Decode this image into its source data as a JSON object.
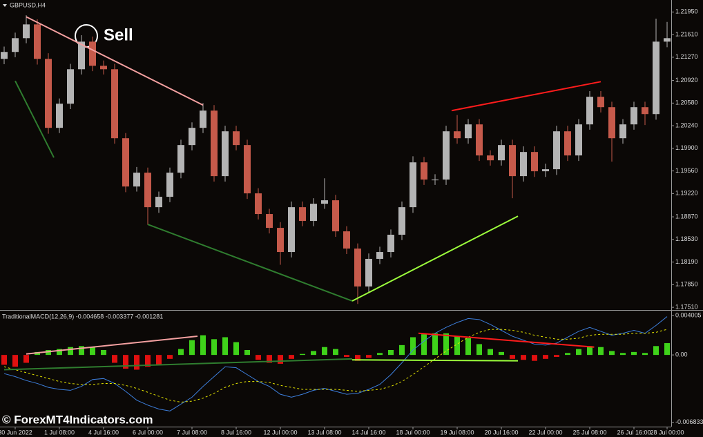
{
  "chart_data": [
    {
      "type": "candlestick",
      "title": "GBPUSD,H4",
      "annotation": "Sell",
      "categories": [
        null,
        "30 Jun 2022",
        null,
        null,
        null,
        "1 Jul 08:00",
        null,
        null,
        null,
        "4 Jul 16:00",
        null,
        null,
        null,
        "6 Jul 00:00",
        null,
        null,
        null,
        "7 Jul 08:00",
        null,
        null,
        null,
        "8 Jul 16:00",
        null,
        null,
        null,
        "12 Jul 00:00",
        null,
        null,
        null,
        "13 Jul 08:00",
        null,
        null,
        null,
        "14 Jul 16:00",
        null,
        null,
        null,
        "18 Jul 00:00",
        null,
        null,
        null,
        "19 Jul 08:00",
        null,
        null,
        null,
        "20 Jul 16:00",
        null,
        null,
        null,
        "22 Jul 00:00",
        null,
        null,
        null,
        "25 Jul 08:00",
        null,
        null,
        null,
        "26 Jul 16:00",
        null,
        null,
        "28 Jul 00:00"
      ],
      "open": [
        1.21245,
        1.21349,
        1.21556,
        1.21763,
        1.21245,
        1.20208,
        1.20571,
        1.21089,
        1.21504,
        1.21141,
        1.21089,
        1.20052,
        1.19326,
        1.19534,
        1.19015,
        1.19171,
        1.19534,
        1.19949,
        1.20208,
        1.20467,
        1.19482,
        1.20156,
        1.19949,
        1.19223,
        1.18912,
        1.18704,
        1.18341,
        1.19015,
        1.18808,
        1.19067,
        1.19119,
        1.18652,
        1.18393,
        1.17823,
        1.18238,
        1.18341,
        1.18601,
        1.19015,
        1.19689,
        1.1943,
        1.1943,
        1.20156,
        1.20052,
        1.2026,
        1.19793,
        1.1972,
        1.19949,
        1.19482,
        1.19845,
        1.19555,
        1.19586,
        1.20156,
        1.19793,
        1.2026,
        1.20675,
        1.20519,
        1.20052,
        1.2026,
        1.20519,
        1.20415,
        1.21504
      ],
      "high": [
        1.2143,
        1.2164,
        1.219,
        1.2184,
        1.2133,
        1.2065,
        1.2117,
        1.216,
        1.2158,
        1.2122,
        1.2117,
        1.2013,
        1.1962,
        1.1961,
        1.1925,
        1.1961,
        1.2003,
        1.2029,
        1.2058,
        1.2055,
        1.2024,
        1.2024,
        1.2003,
        1.193,
        1.1899,
        1.1879,
        1.191,
        1.191,
        1.1915,
        1.1945,
        1.192,
        1.1873,
        1.1847,
        1.1832,
        1.1842,
        1.1868,
        1.191,
        1.1978,
        1.1977,
        1.1951,
        1.2024,
        1.204,
        1.2034,
        1.2034,
        1.1987,
        1.2003,
        1.2003,
        1.1993,
        1.1993,
        1.1967,
        1.2024,
        1.2024,
        1.2034,
        1.2076,
        1.2076,
        1.206,
        1.2034,
        1.206,
        1.206,
        1.2185,
        1.218
      ],
      "low": [
        1.21165,
        1.2127,
        1.2148,
        1.2116,
        1.2012,
        1.2013,
        1.2049,
        1.2101,
        1.2106,
        1.2101,
        1.1997,
        1.1924,
        1.1925,
        1.1875,
        1.1893,
        1.1909,
        1.1945,
        1.1987,
        1.2013,
        1.194,
        1.194,
        1.1987,
        1.1914,
        1.1883,
        1.1862,
        1.1815,
        1.1826,
        1.1873,
        1.1873,
        1.1899,
        1.1857,
        1.1831,
        1.1756,
        1.1774,
        1.1816,
        1.1826,
        1.1852,
        1.1893,
        1.1935,
        1.1935,
        1.1935,
        1.1997,
        1.1997,
        1.1971,
        1.1964,
        1.1964,
        1.1915,
        1.194,
        1.1947,
        1.1947,
        1.195,
        1.1971,
        1.1971,
        1.2018,
        1.2044,
        1.197,
        1.1997,
        1.2018,
        1.2025,
        1.2033,
        1.2142
      ],
      "close": [
        1.21349,
        1.21556,
        1.21763,
        1.21245,
        1.20208,
        1.20571,
        1.21089,
        1.21504,
        1.21141,
        1.21089,
        1.20052,
        1.19326,
        1.19534,
        1.19015,
        1.19171,
        1.19534,
        1.19949,
        1.20208,
        1.20467,
        1.19482,
        1.20156,
        1.19949,
        1.19223,
        1.18912,
        1.18704,
        1.18341,
        1.19015,
        1.18808,
        1.19067,
        1.19119,
        1.18652,
        1.18393,
        1.17823,
        1.18238,
        1.18341,
        1.18601,
        1.19015,
        1.19689,
        1.1943,
        1.1943,
        1.20156,
        1.20052,
        1.2026,
        1.19793,
        1.1972,
        1.19949,
        1.19482,
        1.19845,
        1.19555,
        1.19586,
        1.20156,
        1.19793,
        1.2026,
        1.20675,
        1.20519,
        1.20052,
        1.2026,
        1.20519,
        1.20415,
        1.21504,
        1.21556
      ],
      "up_color": "#b4b4b4",
      "down_color": "#c65a4b",
      "ylim": [
        1.1748,
        1.2213
      ],
      "yticks": [
        {
          "value": 1.2195,
          "label": "1.21950"
        },
        {
          "value": 1.2161,
          "label": "1.21610"
        },
        {
          "value": 1.2127,
          "label": "1.21270"
        },
        {
          "value": 1.2092,
          "label": "1.20920"
        },
        {
          "value": 1.2058,
          "label": "1.20580"
        },
        {
          "value": 1.2024,
          "label": "1.20240"
        },
        {
          "value": 1.199,
          "label": "1.19900"
        },
        {
          "value": 1.1956,
          "label": "1.19560"
        },
        {
          "value": 1.1922,
          "label": "1.19220"
        },
        {
          "value": 1.1887,
          "label": "1.18870"
        },
        {
          "value": 1.1853,
          "label": "1.18530"
        },
        {
          "value": 1.1819,
          "label": "1.18190"
        },
        {
          "value": 1.1785,
          "label": "1.17850"
        },
        {
          "value": 1.1751,
          "label": "1.17510"
        }
      ],
      "lines": [
        {
          "color": "#f4a0a0",
          "x": [
            2,
            18
          ],
          "y": [
            1.21877,
            1.2055
          ]
        },
        {
          "color": "#ff1c1c",
          "x": [
            40.5,
            54
          ],
          "y": [
            1.20467,
            1.20902
          ]
        },
        {
          "color": "#2f7d2f",
          "x": [
            1,
            4.5
          ],
          "y": [
            1.20913,
            1.19762
          ]
        },
        {
          "color": "#2f7d2f",
          "x": [
            13,
            31.5
          ],
          "y": [
            1.18756,
            1.17605
          ]
        },
        {
          "color": "#9cff3c",
          "x": [
            31.5,
            46.5
          ],
          "y": [
            1.17605,
            1.1888
          ]
        }
      ]
    },
    {
      "type": "macd",
      "title": "TraditionalMACD(12,26,9) -0.004658 -0.003377 -0.001281",
      "ylim": [
        -0.00729,
        0.00443
      ],
      "yticks": [
        0.004005,
        {
          "value": 0,
          "label": "0.00"
        },
        -0.006833
      ],
      "series": [
        {
          "type": "bar",
          "color": "#3fd21a",
          "negative_color": "#e01010",
          "values": [
            -0.001,
            -0.0012,
            -0.0008,
            0.0003,
            0.0005,
            0.0006,
            0.0008,
            0.0009,
            0.0008,
            0.0005,
            -0.0008,
            -0.0014,
            -0.0015,
            -0.0012,
            -0.001,
            -0.0004,
            0.0006,
            0.0015,
            0.002,
            0.0016,
            0.0018,
            0.0013,
            0.0005,
            -0.0005,
            -0.0008,
            -0.0009,
            -0.0004,
            0.0001,
            0.0004,
            0.0008,
            0.0006,
            -0.0002,
            -0.0006,
            -0.0003,
            0.0002,
            0.0005,
            0.001,
            0.0018,
            0.0021,
            0.0022,
            0.0022,
            0.0019,
            0.0017,
            0.0011,
            0.0006,
            0.0003,
            -0.0004,
            -0.0005,
            -0.0006,
            -0.0004,
            -0.0002,
            0.0002,
            0.0006,
            0.0009,
            0.0008,
            0.0004,
            0.0002,
            0.0003,
            0.0002,
            0.0009,
            0.0012
          ]
        },
        {
          "type": "line",
          "color": "#3d7fdc",
          "values": [
            -0.0019,
            -0.0022,
            -0.0026,
            -0.0029,
            -0.0033,
            -0.0035,
            -0.0036,
            -0.0032,
            -0.0025,
            -0.0024,
            -0.0029,
            -0.0037,
            -0.0046,
            -0.0051,
            -0.0055,
            -0.0057,
            -0.005,
            -0.0043,
            -0.0032,
            -0.0022,
            -0.0012,
            -0.0013,
            -0.002,
            -0.0027,
            -0.0032,
            -0.004,
            -0.0043,
            -0.004,
            -0.0036,
            -0.0034,
            -0.0037,
            -0.004,
            -0.0039,
            -0.0035,
            -0.003,
            -0.002,
            -0.0008,
            0.0005,
            0.0014,
            0.0022,
            0.0028,
            0.0033,
            0.0037,
            0.0036,
            0.0031,
            0.0025,
            0.0019,
            0.0015,
            0.0011,
            0.001,
            0.0012,
            0.0018,
            0.0024,
            0.0028,
            0.0024,
            0.002,
            0.0022,
            0.0025,
            0.0022,
            0.003,
            0.0039
          ]
        },
        {
          "type": "line",
          "color": "#e6e600",
          "dashed": true,
          "values": [
            -0.0012,
            -0.0015,
            -0.0018,
            -0.0021,
            -0.0024,
            -0.0027,
            -0.0029,
            -0.003,
            -0.003,
            -0.0029,
            -0.0029,
            -0.0031,
            -0.0034,
            -0.0038,
            -0.0042,
            -0.0046,
            -0.0048,
            -0.0047,
            -0.0044,
            -0.0039,
            -0.0033,
            -0.0029,
            -0.0027,
            -0.0027,
            -0.0028,
            -0.0031,
            -0.0033,
            -0.0035,
            -0.0035,
            -0.0035,
            -0.0035,
            -0.0036,
            -0.0037,
            -0.0036,
            -0.0035,
            -0.0032,
            -0.0027,
            -0.002,
            -0.0012,
            -0.0004,
            0.0004,
            0.0011,
            0.0018,
            0.0023,
            0.0026,
            0.0026,
            0.0025,
            0.0023,
            0.002,
            0.0018,
            0.0016,
            0.0016,
            0.0017,
            0.002,
            0.0021,
            0.0021,
            0.0021,
            0.0022,
            0.0022,
            0.0023,
            0.0026
          ]
        }
      ],
      "lines": [
        {
          "color": "#f4a0a0",
          "x": [
            2,
            17.5
          ],
          "y": [
            0.0001,
            0.0019
          ]
        },
        {
          "color": "#2f7d2f",
          "x": [
            0,
            31.5
          ],
          "y": [
            -0.0015,
            -0.0004
          ]
        },
        {
          "color": "#9cff3c",
          "x": [
            31.5,
            46.5
          ],
          "y": [
            -0.0005,
            -0.0006
          ]
        },
        {
          "color": "#ff1c1c",
          "x": [
            37.5,
            53.4
          ],
          "y": [
            0.0022,
            0.0008
          ]
        }
      ]
    }
  ],
  "watermark": "© ForexMT4Indicators.com"
}
